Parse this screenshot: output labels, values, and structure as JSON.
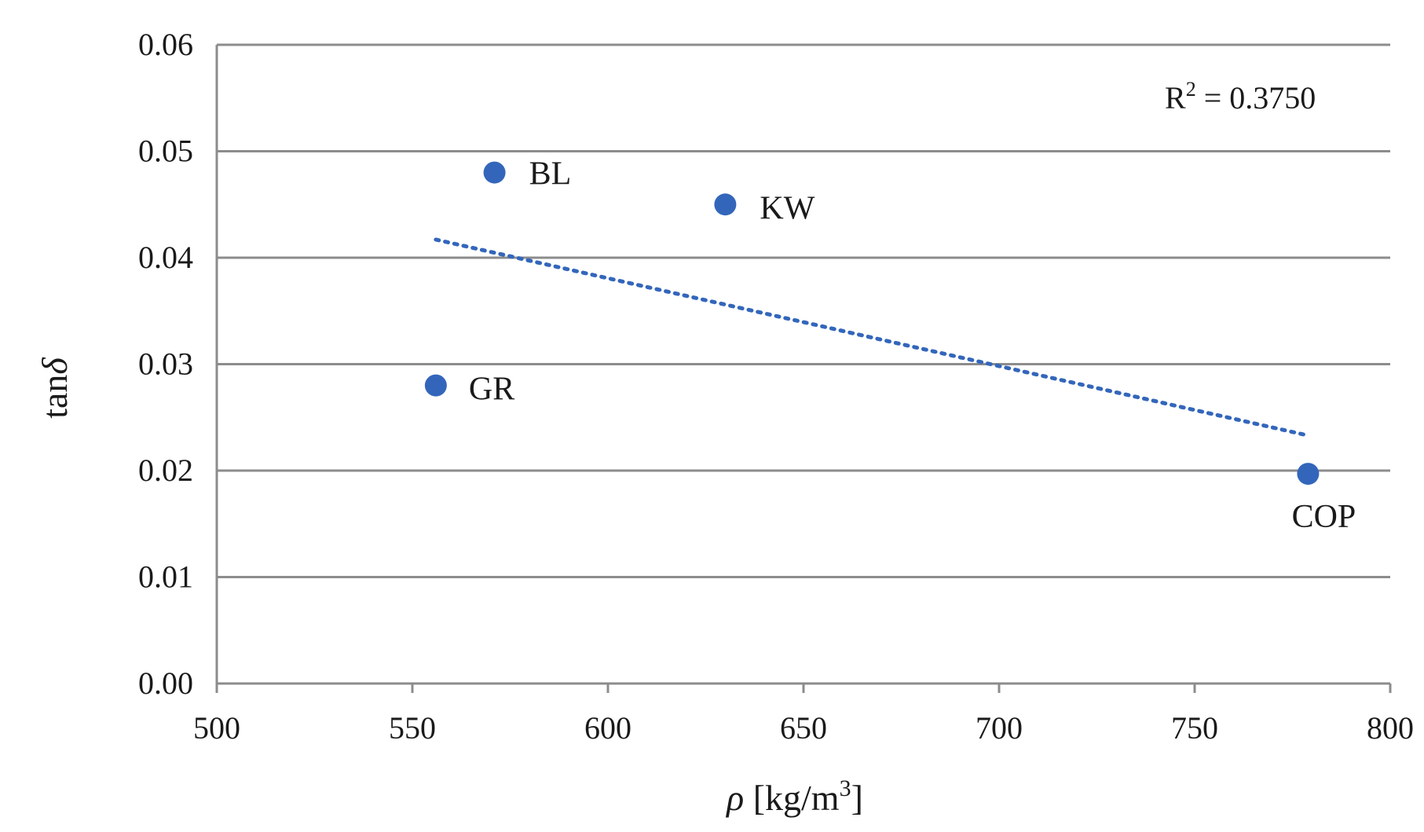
{
  "chart_data": {
    "type": "scatter",
    "title": "",
    "xlabel": "ρ [kg/m³]",
    "xlabel_rho": "ρ",
    "xlabel_unit_base": "[kg/m",
    "xlabel_unit_sup": "3",
    "xlabel_unit_close": "]",
    "ylabel": "tanδ",
    "ylabel_base": "tan",
    "ylabel_delta": "δ",
    "xlim": [
      500,
      800
    ],
    "ylim": [
      0.0,
      0.06
    ],
    "x_ticks": [
      "500",
      "550",
      "600",
      "650",
      "700",
      "750",
      "800"
    ],
    "y_ticks": [
      "0.00",
      "0.01",
      "0.02",
      "0.03",
      "0.04",
      "0.05",
      "0.06"
    ],
    "grid": "horizontal",
    "series": [
      {
        "name": "samples",
        "color": "#3366bb",
        "points": [
          {
            "label": "BL",
            "x": 571,
            "y": 0.048
          },
          {
            "label": "KW",
            "x": 630,
            "y": 0.045
          },
          {
            "label": "GR",
            "x": 556,
            "y": 0.028
          },
          {
            "label": "COP",
            "x": 779,
            "y": 0.0197
          }
        ]
      }
    ],
    "trendline": {
      "type": "linear",
      "style": "dotted",
      "color": "#3366bb",
      "x_start": 556,
      "y_start": 0.0417,
      "x_end": 779,
      "y_end": 0.0233
    },
    "annotation": {
      "text_base": "R",
      "text_sup": "2",
      "text_rest": " = 0.3750",
      "r2": 0.375
    }
  }
}
